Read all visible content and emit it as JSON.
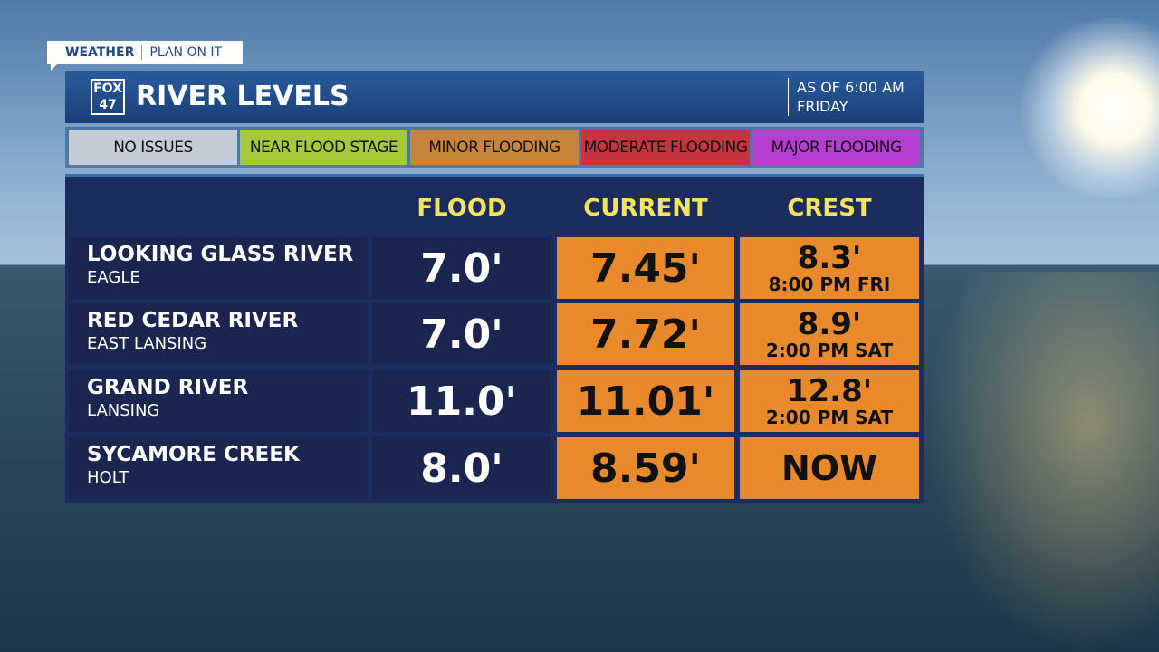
{
  "tag": {
    "left": "WEATHER",
    "right": "PLAN ON IT"
  },
  "header": {
    "logo_top": "FOX",
    "logo_bottom": "47",
    "title": "RIVER LEVELS",
    "as_of": [
      "AS OF 6:00 AM",
      "FRIDAY"
    ]
  },
  "legend": [
    "NO ISSUES",
    "NEAR FLOOD STAGE",
    "MINOR FLOODING",
    "MODERATE FLOODING",
    "MAJOR FLOODING"
  ],
  "table": {
    "columns": [
      "FLOOD",
      "CURRENT",
      "CREST"
    ],
    "rows": [
      {
        "river": "LOOKING GLASS RIVER",
        "place": "EAGLE",
        "flood": "7.0'",
        "current": "7.45'",
        "crest": "8.3'",
        "crest_time": "8:00 PM FRI"
      },
      {
        "river": "RED CEDAR RIVER",
        "place": "EAST LANSING",
        "flood": "7.0'",
        "current": "7.72'",
        "crest": "8.9'",
        "crest_time": "2:00 PM SAT"
      },
      {
        "river": "GRAND RIVER",
        "place": "LANSING",
        "flood": "11.0'",
        "current": "11.01'",
        "crest": "12.8'",
        "crest_time": "2:00 PM SAT"
      },
      {
        "river": "SYCAMORE CREEK",
        "place": "HOLT",
        "flood": "8.0'",
        "current": "8.59'",
        "crest": "NOW"
      }
    ]
  }
}
